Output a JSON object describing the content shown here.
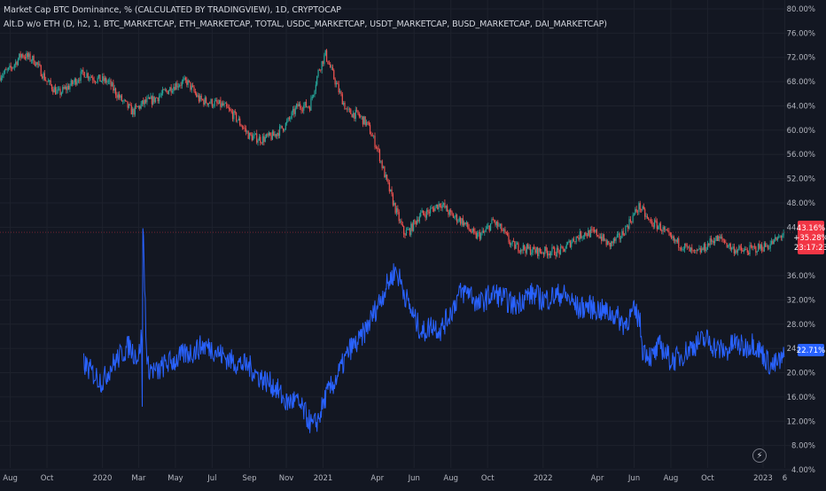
{
  "legend": {
    "line1": "Market Cap BTC Dominance, % (CALCULATED BY TRADINGVIEW), 1D, CRYPTOCAP",
    "line2": "Alt.D w/o ETH (D, h2, 1, BTC_MARKETCAP, ETH_MARKETCAP, TOTAL, USDC_MARKETCAP, USDT_MARKETCAP, BUSD_MARKETCAP, DAI_MARKETCAP)"
  },
  "icons": {
    "flash": "lightning-icon"
  },
  "colors": {
    "background": "#131722",
    "grid": "#1e222d",
    "up": "#26a69a",
    "down": "#ef5350",
    "alt_line": "#2962ff",
    "axis_text": "#b2b5be"
  },
  "price_badges": {
    "btc": {
      "value": "43.16%",
      "change": "+35.28%",
      "countdown": "23:17:23",
      "color": "#f23645"
    },
    "alt": {
      "value": "22.71%",
      "color": "#2962ff"
    }
  },
  "chart_data": {
    "type": "line",
    "x_range": [
      "2019-07-15",
      "2023-02-20"
    ],
    "x_ticks": [
      "Aug",
      "Oct",
      "2020",
      "Mar",
      "May",
      "Jul",
      "Sep",
      "Nov",
      "2021",
      "Apr",
      "Jun",
      "Aug",
      "Oct",
      "2022",
      "Apr",
      "Jun",
      "Aug",
      "Oct",
      "2023",
      "6"
    ],
    "y_ticks": [
      "80.00%",
      "76.00%",
      "72.00%",
      "68.00%",
      "64.00%",
      "60.00%",
      "56.00%",
      "52.00%",
      "48.00%",
      "44.00%",
      "36.00%",
      "32.00%",
      "28.00%",
      "24.00%",
      "20.00%",
      "16.00%",
      "12.00%",
      "8.00%",
      "4.00%"
    ],
    "ylim": [
      4,
      80
    ],
    "grid": true,
    "series": [
      {
        "style": "candles",
        "x": [
          "2019-07-15",
          "2019-08-01",
          "2019-08-20",
          "2019-09-10",
          "2019-10-01",
          "2019-10-20",
          "2019-11-10",
          "2019-12-01",
          "2019-12-20",
          "2020-01-10",
          "2020-02-01",
          "2020-02-20",
          "2020-03-10",
          "2020-03-25",
          "2020-04-10",
          "2020-05-01",
          "2020-05-20",
          "2020-06-10",
          "2020-07-01",
          "2020-07-20",
          "2020-08-10",
          "2020-09-01",
          "2020-09-20",
          "2020-10-10",
          "2020-11-01",
          "2020-11-20",
          "2020-12-10",
          "2020-12-25",
          "2021-01-05",
          "2021-01-25",
          "2021-02-10",
          "2021-02-28",
          "2021-03-15",
          "2021-04-01",
          "2021-04-15",
          "2021-05-01",
          "2021-05-15",
          "2021-05-25",
          "2021-06-10",
          "2021-06-25",
          "2021-07-15",
          "2021-08-01",
          "2021-08-20",
          "2021-09-10",
          "2021-09-25",
          "2021-10-10",
          "2021-10-25",
          "2021-11-10",
          "2021-12-01",
          "2021-12-20",
          "2022-01-10",
          "2022-02-01",
          "2022-02-20",
          "2022-03-10",
          "2022-04-01",
          "2022-04-20",
          "2022-05-10",
          "2022-05-25",
          "2022-06-10",
          "2022-06-25",
          "2022-07-15",
          "2022-08-01",
          "2022-08-20",
          "2022-09-10",
          "2022-09-25",
          "2022-10-10",
          "2022-10-25",
          "2022-11-10",
          "2022-12-01",
          "2022-12-20",
          "2023-01-10",
          "2023-01-25",
          "2023-02-05"
        ],
        "y": [
          69.0,
          70.0,
          72.5,
          71.5,
          68.0,
          66.0,
          67.5,
          69.5,
          68.5,
          68.0,
          65.0,
          63.0,
          64.5,
          65.0,
          66.0,
          67.5,
          68.0,
          65.0,
          64.5,
          64.0,
          62.0,
          59.0,
          58.5,
          59.0,
          61.0,
          64.0,
          64.0,
          70.0,
          72.5,
          67.0,
          63.0,
          62.5,
          61.0,
          57.0,
          52.0,
          47.0,
          43.0,
          43.5,
          46.0,
          46.5,
          48.0,
          46.0,
          45.0,
          42.5,
          43.0,
          45.0,
          43.5,
          41.0,
          40.5,
          40.0,
          40.0,
          40.0,
          42.0,
          43.0,
          43.0,
          41.0,
          42.5,
          45.0,
          47.5,
          45.0,
          44.0,
          42.0,
          41.0,
          39.5,
          40.5,
          42.0,
          42.0,
          40.5,
          40.0,
          40.5,
          41.0,
          42.0,
          43.16
        ]
      },
      {
        "style": "line",
        "x": [
          "2019-12-01",
          "2019-12-15",
          "2020-01-01",
          "2020-01-15",
          "2020-02-01",
          "2020-02-15",
          "2020-02-20",
          "2020-03-01",
          "2020-03-06",
          "2020-03-07",
          "2020-03-08",
          "2020-03-15",
          "2020-04-01",
          "2020-04-15",
          "2020-05-01",
          "2020-05-15",
          "2020-06-01",
          "2020-06-15",
          "2020-07-01",
          "2020-07-15",
          "2020-08-01",
          "2020-08-15",
          "2020-09-01",
          "2020-09-15",
          "2020-10-01",
          "2020-10-15",
          "2020-11-01",
          "2020-11-15",
          "2020-12-01",
          "2020-12-15",
          "2020-12-25",
          "2021-01-05",
          "2021-01-20",
          "2021-02-01",
          "2021-02-15",
          "2021-03-01",
          "2021-03-15",
          "2021-04-01",
          "2021-04-15",
          "2021-05-01",
          "2021-05-10",
          "2021-05-20",
          "2021-06-01",
          "2021-06-15",
          "2021-07-01",
          "2021-07-15",
          "2021-08-01",
          "2021-08-15",
          "2021-09-01",
          "2021-09-15",
          "2021-10-01",
          "2021-10-15",
          "2021-11-01",
          "2021-11-15",
          "2021-12-01",
          "2021-12-15",
          "2022-01-01",
          "2022-01-15",
          "2022-02-01",
          "2022-02-15",
          "2022-03-01",
          "2022-03-15",
          "2022-04-01",
          "2022-04-15",
          "2022-05-01",
          "2022-05-15",
          "2022-06-01",
          "2022-06-10",
          "2022-06-15",
          "2022-07-01",
          "2022-07-15",
          "2022-08-01",
          "2022-08-15",
          "2022-09-01",
          "2022-09-15",
          "2022-10-01",
          "2022-10-15",
          "2022-11-01",
          "2022-11-15",
          "2022-12-01",
          "2022-12-15",
          "2023-01-01",
          "2023-01-15",
          "2023-02-01",
          "2023-02-05"
        ],
        "y": [
          21.5,
          20.0,
          18.5,
          21.0,
          23.0,
          24.5,
          23.5,
          22.5,
          26.5,
          13.0,
          45.0,
          21.0,
          20.0,
          21.5,
          22.0,
          23.0,
          23.5,
          24.5,
          24.0,
          23.0,
          22.0,
          21.5,
          21.0,
          19.5,
          18.5,
          17.5,
          15.0,
          15.5,
          13.5,
          11.0,
          12.5,
          16.0,
          18.5,
          21.0,
          24.0,
          25.0,
          27.5,
          31.0,
          34.0,
          37.0,
          35.0,
          32.0,
          29.0,
          26.5,
          28.0,
          27.0,
          30.0,
          33.0,
          33.5,
          31.0,
          32.5,
          33.0,
          32.0,
          31.0,
          32.5,
          33.0,
          32.0,
          32.5,
          33.0,
          32.0,
          30.5,
          31.0,
          30.5,
          30.0,
          29.5,
          28.0,
          30.0,
          29.0,
          24.0,
          22.5,
          24.5,
          22.0,
          22.5,
          24.0,
          25.0,
          25.5,
          24.0,
          23.5,
          25.0,
          24.0,
          25.0,
          23.0,
          21.0,
          22.0,
          22.71
        ]
      }
    ]
  }
}
